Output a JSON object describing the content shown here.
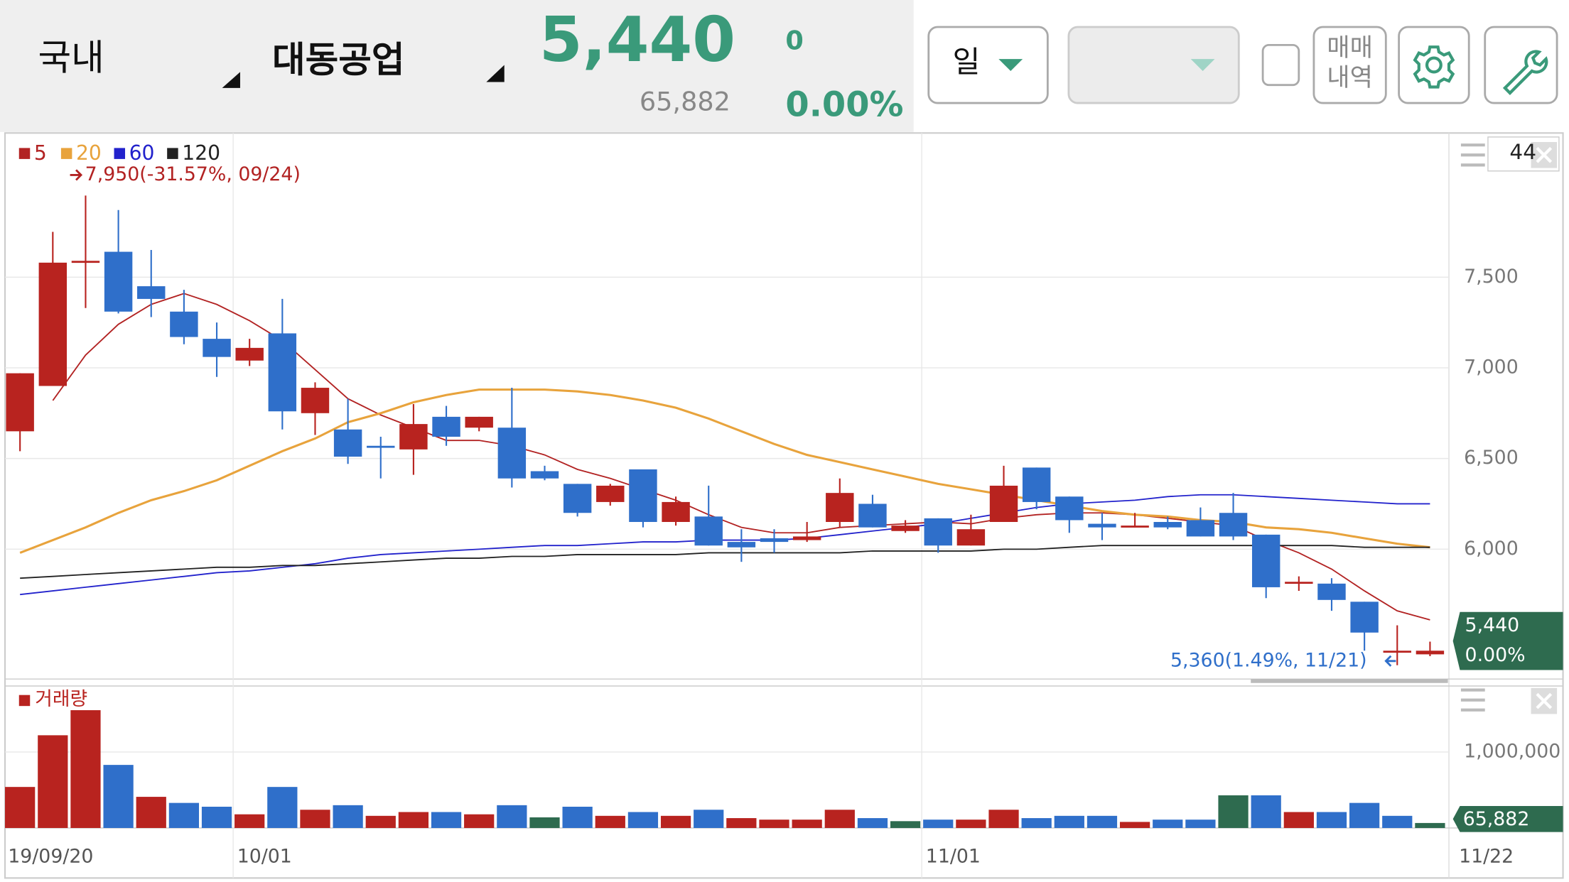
{
  "header": {
    "market": "국내",
    "stock": "대동공업",
    "price": "5,440",
    "change": "0",
    "volume": "65,882",
    "change_rate": "0.00%",
    "period": "일",
    "trade_history": [
      "매매",
      "내역"
    ]
  },
  "chart_data": [
    {
      "type": "candlestick",
      "categories": [
        "19/09/20",
        null,
        null,
        null,
        null,
        null,
        null,
        "10/01",
        null,
        null,
        null,
        null,
        null,
        null,
        null,
        null,
        null,
        null,
        null,
        null,
        null,
        null,
        null,
        null,
        null,
        null,
        null,
        null,
        "11/01",
        null,
        null,
        null,
        null,
        null,
        null,
        null,
        null,
        null,
        null,
        null,
        null,
        null,
        null,
        "11/22"
      ],
      "open": [
        6650,
        6900,
        7580,
        7640,
        7450,
        7310,
        7160,
        7040,
        7190,
        6750,
        6660,
        6570,
        6550,
        6730,
        6670,
        6670,
        6430,
        6360,
        6260,
        6440,
        6150,
        6180,
        6040,
        6060,
        6050,
        6150,
        6250,
        6100,
        6170,
        6020,
        6150,
        6450,
        6290,
        6140,
        6120,
        6150,
        6160,
        6200,
        6080,
        5810,
        5810,
        5710,
        5430,
        5420
      ],
      "high": [
        6970,
        7750,
        7950,
        7870,
        7650,
        7430,
        7250,
        7160,
        7380,
        6920,
        6830,
        6620,
        6800,
        6790,
        6730,
        6890,
        6460,
        6360,
        6360,
        6440,
        6290,
        6350,
        6110,
        6110,
        6150,
        6390,
        6300,
        6160,
        6170,
        6190,
        6460,
        6450,
        6290,
        6200,
        6200,
        6180,
        6230,
        6310,
        6080,
        5850,
        5840,
        5710,
        5580,
        5490
      ],
      "low": [
        6540,
        6900,
        7330,
        7300,
        7280,
        7130,
        6950,
        7010,
        6660,
        6630,
        6470,
        6390,
        6410,
        6570,
        6650,
        6340,
        6380,
        6180,
        6240,
        6120,
        6130,
        6020,
        5930,
        5980,
        6040,
        6120,
        6120,
        6090,
        5980,
        6020,
        6150,
        6220,
        6090,
        6050,
        6120,
        6110,
        6070,
        6050,
        5730,
        5770,
        5660,
        5440,
        5360,
        5410
      ],
      "close": [
        6970,
        7580,
        7590,
        7310,
        7380,
        7170,
        7060,
        7110,
        6760,
        6890,
        6510,
        6560,
        6690,
        6620,
        6730,
        6390,
        6390,
        6200,
        6350,
        6150,
        6260,
        6020,
        6010,
        6040,
        6070,
        6310,
        6120,
        6130,
        6020,
        6110,
        6350,
        6260,
        6160,
        6120,
        6130,
        6120,
        6070,
        6070,
        5790,
        5820,
        5720,
        5540,
        5440,
        5440
      ],
      "up_color": "#b8231f",
      "down_color": "#2f6fca",
      "lines": [
        {
          "name": "5",
          "color": "#b22222",
          "values": [
            null,
            6820,
            7070,
            7240,
            7350,
            7410,
            7350,
            7260,
            7150,
            6990,
            6830,
            6740,
            6670,
            6600,
            6600,
            6570,
            6520,
            6440,
            6390,
            6330,
            6270,
            6190,
            6120,
            6090,
            6090,
            6120,
            6130,
            6140,
            6150,
            6140,
            6170,
            6190,
            6200,
            6200,
            6190,
            6170,
            6150,
            6130,
            6050,
            5980,
            5890,
            5770,
            5660,
            5610
          ]
        },
        {
          "name": "20",
          "color": "#e8a33c",
          "values": [
            5980,
            6050,
            6120,
            6200,
            6270,
            6320,
            6380,
            6460,
            6540,
            6610,
            6700,
            6750,
            6810,
            6850,
            6880,
            6880,
            6880,
            6870,
            6850,
            6820,
            6780,
            6720,
            6650,
            6580,
            6520,
            6480,
            6440,
            6400,
            6360,
            6330,
            6300,
            6270,
            6240,
            6210,
            6190,
            6180,
            6160,
            6150,
            6120,
            6110,
            6090,
            6060,
            6030,
            6010
          ]
        },
        {
          "name": "60",
          "color": "#2222cc",
          "values": [
            5750,
            5770,
            5790,
            5810,
            5830,
            5850,
            5870,
            5880,
            5900,
            5920,
            5950,
            5970,
            5980,
            5990,
            6000,
            6010,
            6020,
            6020,
            6030,
            6040,
            6040,
            6050,
            6050,
            6050,
            6060,
            6080,
            6100,
            6120,
            6140,
            6170,
            6200,
            6230,
            6250,
            6260,
            6270,
            6290,
            6300,
            6300,
            6290,
            6280,
            6270,
            6260,
            6250,
            6250
          ]
        },
        {
          "name": "120",
          "color": "#222222",
          "values": [
            5840,
            5850,
            5860,
            5870,
            5880,
            5890,
            5900,
            5900,
            5910,
            5910,
            5920,
            5930,
            5940,
            5950,
            5950,
            5960,
            5960,
            5970,
            5970,
            5970,
            5970,
            5980,
            5980,
            5980,
            5980,
            5980,
            5990,
            5990,
            5990,
            5990,
            6000,
            6000,
            6010,
            6020,
            6020,
            6020,
            6020,
            6020,
            6020,
            6020,
            6020,
            6010,
            6010,
            6010
          ]
        }
      ],
      "ylim": [
        5295,
        8295
      ],
      "yticks": [
        {
          "value": 6000,
          "label": "6,000"
        },
        {
          "value": 6500,
          "label": "6,500"
        },
        {
          "value": 7000,
          "label": "7,000"
        },
        {
          "value": 7500,
          "label": "7,500"
        }
      ],
      "grid": true,
      "annotations": [
        {
          "text": "7,950(-31.57%, 09/24)",
          "color": "#b22222"
        },
        {
          "text": "5,360(1.49%, 11/21)",
          "color": "#2f6fca"
        }
      ],
      "last_label": "5,440",
      "last_change": "0.00%",
      "visible_count": "44"
    },
    {
      "type": "bar",
      "series": [
        {
          "name": "거래량",
          "color": "#b8231f",
          "values": [
            540000,
            1220000,
            1550000,
            830000,
            410000,
            330000,
            280000,
            180000,
            540000,
            240000,
            300000,
            160000,
            210000,
            210000,
            180000,
            300000,
            140000,
            280000,
            160000,
            210000,
            160000,
            240000,
            130000,
            110000,
            110000,
            240000,
            130000,
            90000,
            110000,
            110000,
            240000,
            130000,
            160000,
            160000,
            80000,
            110000,
            110000,
            430000,
            430000,
            210000,
            210000,
            330000,
            160000,
            65882
          ],
          "colors": [
            "#b8231f",
            "#b8231f",
            "#b8231f",
            "#2f6fca",
            "#b8231f",
            "#2f6fca",
            "#2f6fca",
            "#b8231f",
            "#2f6fca",
            "#b8231f",
            "#2f6fca",
            "#b8231f",
            "#b8231f",
            "#2f6fca",
            "#b8231f",
            "#2f6fca",
            "#2e6b4f",
            "#2f6fca",
            "#b8231f",
            "#2f6fca",
            "#b8231f",
            "#2f6fca",
            "#b8231f",
            "#b8231f",
            "#b8231f",
            "#b8231f",
            "#2f6fca",
            "#2e6b4f",
            "#2f6fca",
            "#b8231f",
            "#b8231f",
            "#2f6fca",
            "#2f6fca",
            "#2f6fca",
            "#b8231f",
            "#2f6fca",
            "#2f6fca",
            "#2e6b4f",
            "#2f6fca",
            "#b8231f",
            "#2f6fca",
            "#2f6fca",
            "#2f6fca",
            "#2e6b4f"
          ]
        }
      ],
      "ylim": [
        0,
        1855000
      ],
      "yticks": [
        {
          "value": 1000000,
          "label": "1,000,000"
        }
      ],
      "grid": true,
      "last_label": "65,882"
    }
  ]
}
